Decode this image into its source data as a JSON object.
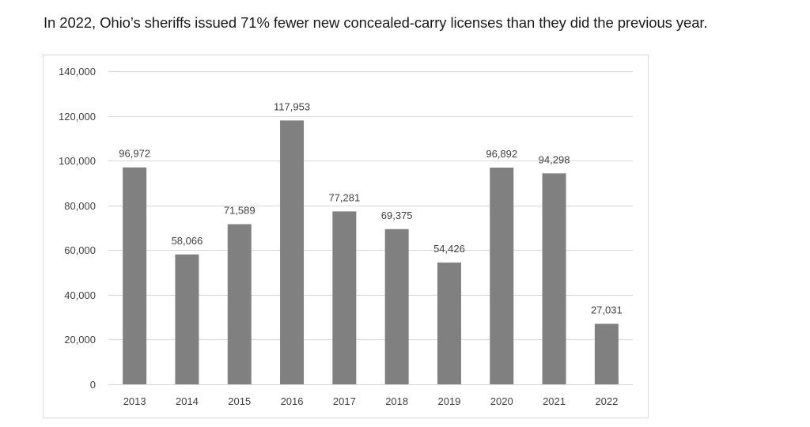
{
  "headline": "In 2022, Ohio’s sheriffs issued 71% fewer new concealed-carry licenses than they did the previous year.",
  "chart_data": {
    "type": "bar",
    "categories": [
      "2013",
      "2014",
      "2015",
      "2016",
      "2017",
      "2018",
      "2019",
      "2020",
      "2021",
      "2022"
    ],
    "values": [
      96972,
      58066,
      71589,
      117953,
      77281,
      69375,
      54426,
      96892,
      94298,
      27031
    ],
    "data_labels": [
      "96,972",
      "58,066",
      "71,589",
      "117,953",
      "77,281",
      "69,375",
      "54,426",
      "96,892",
      "94,298",
      "27,031"
    ],
    "yticks": [
      0,
      20000,
      40000,
      60000,
      80000,
      100000,
      120000,
      140000
    ],
    "ytick_labels": [
      "0",
      "20,000",
      "40,000",
      "60,000",
      "80,000",
      "100,000",
      "120,000",
      "140,000"
    ],
    "ylim": [
      0,
      140000
    ],
    "grid": true,
    "bar_color": "#808080",
    "grid_color": "#d9d9d9"
  }
}
